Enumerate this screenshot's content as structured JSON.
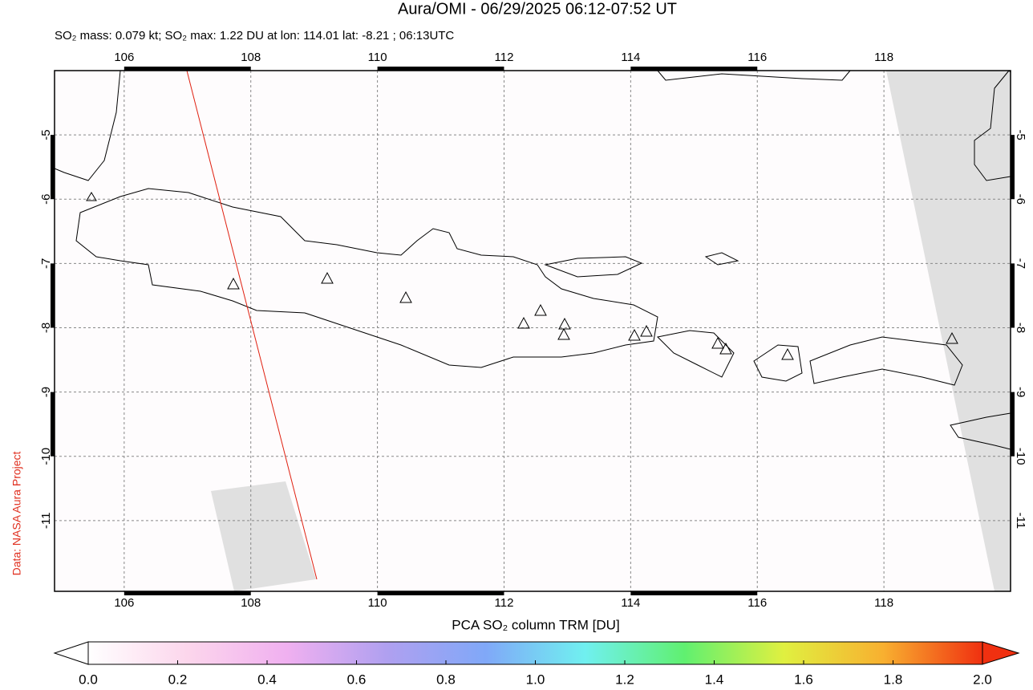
{
  "chart_data": {
    "type": "map",
    "title": "Aura/OMI - 06/29/2025 06:12-07:52 UT",
    "subtitle": "SO₂ mass: 0.079 kt; SO₂ max: 1.22 DU at lon: 114.01 lat: -8.21 ; 06:13UTC",
    "credit": "Data: NASA Aura Project",
    "xlim": [
      104.9,
      120
    ],
    "xticks": [
      106,
      108,
      110,
      112,
      114,
      116,
      118
    ],
    "ylim": [
      -12.1,
      -4
    ],
    "yticks": [
      -5,
      -6,
      -7,
      -8,
      -9,
      -10,
      -11
    ],
    "grid": true,
    "colorbar": {
      "label": "PCA SO₂ column TRM [DU]",
      "lim": [
        0,
        2
      ],
      "ticks": [
        {
          "value": 0,
          "label": "0.0"
        },
        0.2,
        0.4,
        0.6,
        0.8,
        {
          "value": 1,
          "label": "1.0"
        },
        1.2,
        1.4,
        1.6,
        1.8,
        {
          "value": 2,
          "label": "2.0"
        }
      ],
      "colors": [
        "#ffffff",
        "#fcd6ec",
        "#f0b0f0",
        "#b0a0f0",
        "#80a8f8",
        "#70f0f0",
        "#60f070",
        "#e0f040",
        "#f8b030",
        "#f03010"
      ]
    }
  }
}
